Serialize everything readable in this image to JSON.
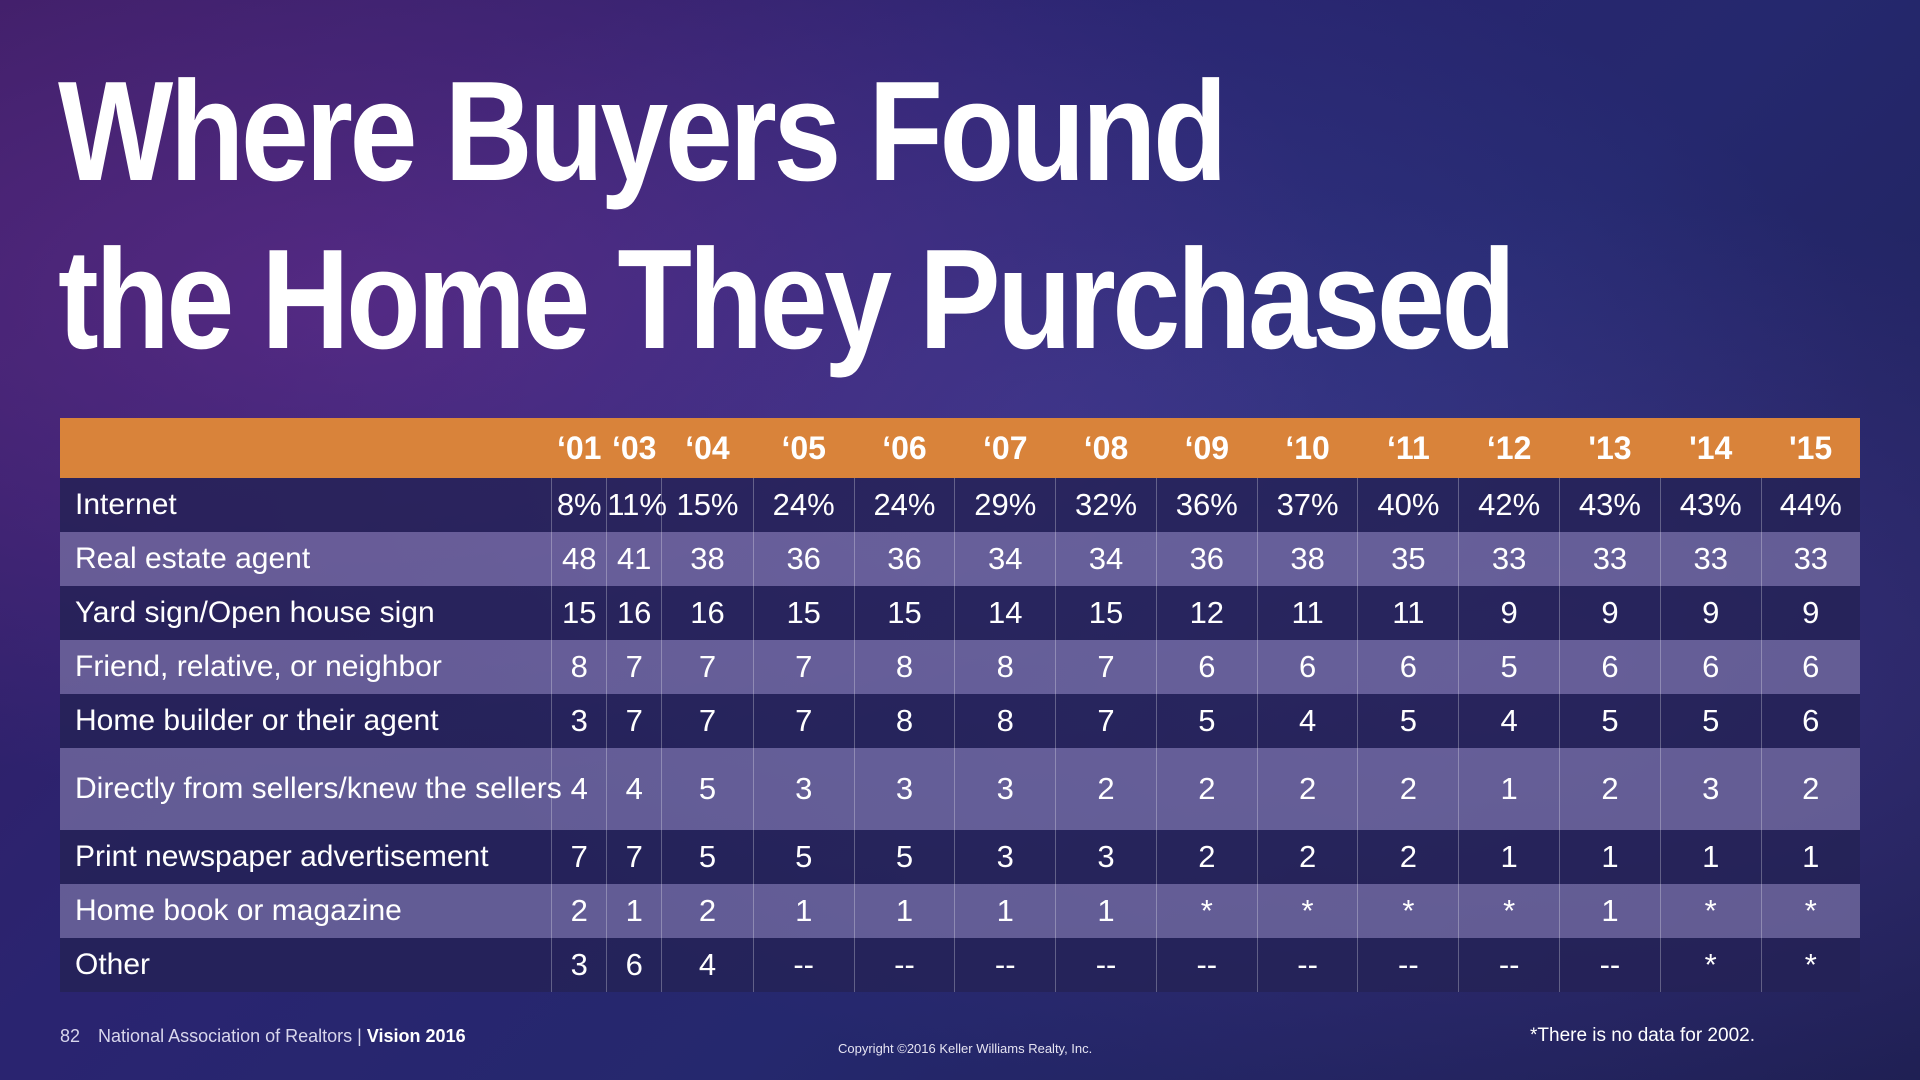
{
  "title": {
    "line1": "Where Buyers Found",
    "line2": "the Home They Purchased"
  },
  "colors": {
    "header_bar": "#d9833a",
    "row_dark": "#242256",
    "row_light": "#736ca0",
    "background": "#2a2470"
  },
  "chart_data": {
    "type": "table",
    "title": "Where Buyers Found the Home They Purchased",
    "columns": [
      "",
      "‘01",
      "‘03",
      "‘04",
      "‘05",
      "‘06",
      "‘07",
      "‘08",
      "‘09",
      "‘10",
      "‘11",
      "‘12",
      "'13",
      "'14",
      "'15"
    ],
    "rows": [
      {
        "label": "Internet",
        "values": [
          "8%",
          "11%",
          "15%",
          "24%",
          "24%",
          "29%",
          "32%",
          "36%",
          "37%",
          "40%",
          "42%",
          "43%",
          "43%",
          "44%"
        ]
      },
      {
        "label": "Real estate agent",
        "values": [
          "48",
          "41",
          "38",
          "36",
          "36",
          "34",
          "34",
          "36",
          "38",
          "35",
          "33",
          "33",
          "33",
          "33"
        ]
      },
      {
        "label": "Yard sign/Open house sign",
        "values": [
          "15",
          "16",
          "16",
          "15",
          "15",
          "14",
          "15",
          "12",
          "11",
          "11",
          "9",
          "9",
          "9",
          "9"
        ]
      },
      {
        "label": "Friend, relative, or neighbor",
        "values": [
          "8",
          "7",
          "7",
          "7",
          "8",
          "8",
          "7",
          "6",
          "6",
          "6",
          "5",
          "6",
          "6",
          "6"
        ]
      },
      {
        "label": "Home builder or their agent",
        "values": [
          "3",
          "7",
          "7",
          "7",
          "8",
          "8",
          "7",
          "5",
          "4",
          "5",
          "4",
          "5",
          "5",
          "6"
        ]
      },
      {
        "label": "Directly from sellers/knew the sellers",
        "values": [
          "4",
          "4",
          "5",
          "3",
          "3",
          "3",
          "2",
          "2",
          "2",
          "2",
          "1",
          "2",
          "3",
          "2"
        ]
      },
      {
        "label": "Print newspaper advertisement",
        "values": [
          "7",
          "7",
          "5",
          "5",
          "5",
          "3",
          "3",
          "2",
          "2",
          "2",
          "1",
          "1",
          "1",
          "1"
        ]
      },
      {
        "label": "Home book or magazine",
        "values": [
          "2",
          "1",
          "2",
          "1",
          "1",
          "1",
          "1",
          "*",
          "*",
          "*",
          "*",
          "1",
          "*",
          "*"
        ]
      },
      {
        "label": "Other",
        "values": [
          "3",
          "6",
          "4",
          "--",
          "--",
          "--",
          "--",
          "--",
          "--",
          "--",
          "--",
          "--",
          "*",
          "*"
        ]
      }
    ]
  },
  "footer": {
    "page_number": "82",
    "source": "National Association of Realtors",
    "separator": "|",
    "vision": "Vision 2016",
    "copyright": "Copyright ©2016 Keller Williams Realty, Inc.",
    "footnote": "*There is no data for 2002."
  }
}
